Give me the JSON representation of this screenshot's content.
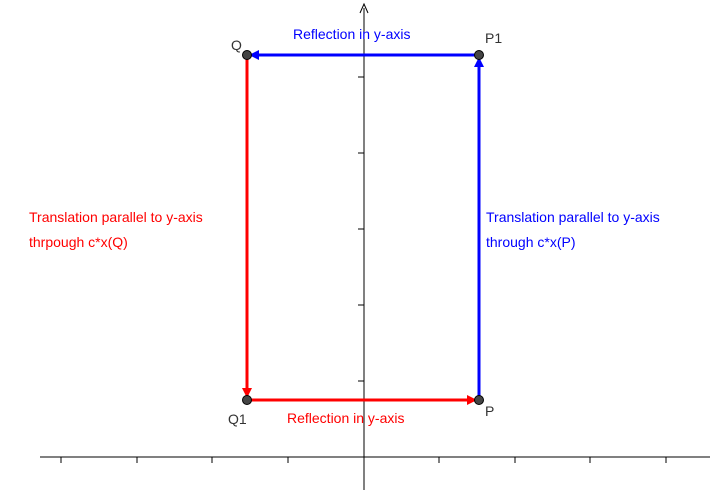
{
  "colors": {
    "red": "#ff0000",
    "blue": "#0000ff",
    "axis": "#000000",
    "point_fill": "#444444",
    "label_gray": "#333333"
  },
  "points": {
    "P": "P",
    "P1": "P1",
    "Q": "Q",
    "Q1": "Q1"
  },
  "labels": {
    "top_arrow": "Reflection in y-axis",
    "bottom_arrow": "Reflection in y-axis",
    "right_arrow": "Translation parallel to y-axis\nthrough c*x(P)",
    "left_arrow": "Translation parallel to y-axis\nthrpough c*x(Q)"
  }
}
